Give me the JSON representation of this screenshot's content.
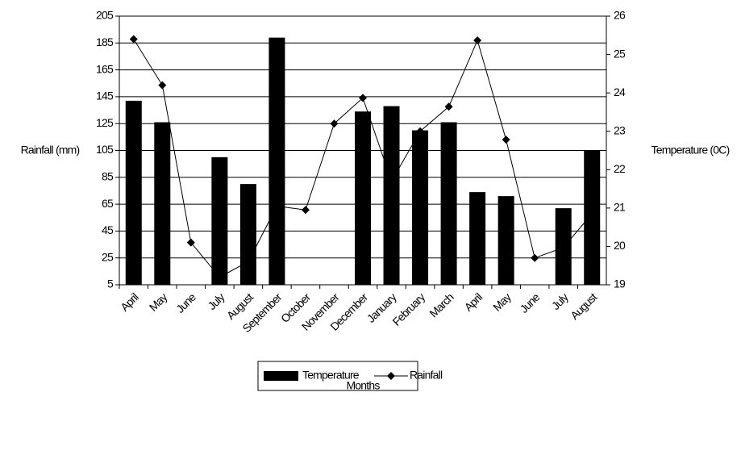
{
  "chart_data": {
    "type": "bar_line",
    "categories": [
      "April",
      "May",
      "June",
      "July",
      "August",
      "September",
      "October",
      "November",
      "December",
      "January",
      "February",
      "March",
      "April",
      "May",
      "June",
      "July",
      "August"
    ],
    "series": [
      {
        "name": "Temperature",
        "type": "bar",
        "color": "#000000",
        "values": [
          142,
          126,
          null,
          100,
          80,
          189,
          null,
          null,
          134,
          138,
          120,
          126,
          74,
          71,
          null,
          62,
          105
        ]
      },
      {
        "name": "Rainfall",
        "type": "line",
        "axis": "y2",
        "color": "#000000",
        "values": [
          25.4,
          24.2,
          20.1,
          19.2,
          19.6,
          21.05,
          20.95,
          23.2,
          23.87,
          21.7,
          23.0,
          23.64,
          25.37,
          22.78,
          19.7,
          19.97,
          20.85
        ]
      }
    ],
    "ylabel": "Rainfall (mm)",
    "y2label": "Temperature (0C)",
    "xlabel": "Months",
    "ylim": [
      5,
      205
    ],
    "yticks": [
      5,
      25,
      45,
      65,
      85,
      105,
      125,
      145,
      165,
      185,
      205
    ],
    "y2lim": [
      19,
      26
    ],
    "y2ticks": [
      19,
      20,
      21,
      22,
      23,
      24,
      25,
      26
    ],
    "grid": true,
    "legend": "bottom"
  }
}
